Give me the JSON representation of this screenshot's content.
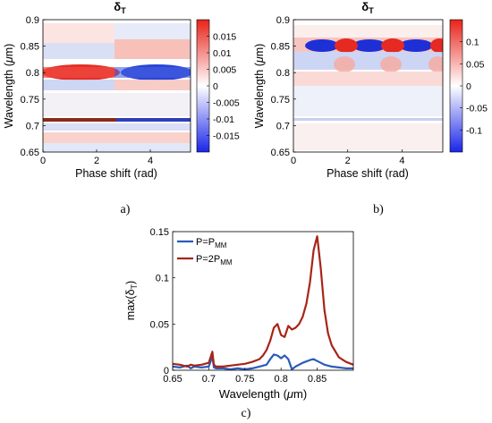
{
  "chart_data": [
    {
      "id": "a",
      "type": "heatmap",
      "title": "δ",
      "title_sub": "T",
      "xlabel": "Phase shift (rad)",
      "ylabel_pre": "Wavelength (",
      "ylabel_mu": "μ",
      "ylabel_post": "m)",
      "xlim": [
        0,
        5.5
      ],
      "ylim": [
        0.65,
        0.9
      ],
      "xticks": [
        0,
        2,
        4
      ],
      "yticks": [
        0.65,
        0.7,
        0.75,
        0.8,
        0.85,
        0.9
      ],
      "clim": [
        -0.02,
        0.02
      ],
      "colorbar_ticks": [
        "0.015",
        "0.01",
        "0.005",
        "0",
        "-0.005",
        "-0.01",
        "-0.015"
      ],
      "colorbar_tick_values": [
        0.015,
        0.01,
        0.005,
        0,
        -0.005,
        -0.01,
        -0.015
      ],
      "caption": "a)"
    },
    {
      "id": "b",
      "type": "heatmap",
      "title": "δ",
      "title_sub": "T",
      "xlabel": "Phase shift (rad)",
      "ylabel_pre": "Wavelength (",
      "ylabel_mu": "μ",
      "ylabel_post": "m)",
      "xlim": [
        0,
        5.5
      ],
      "ylim": [
        0.65,
        0.9
      ],
      "xticks": [
        0,
        2,
        4
      ],
      "yticks": [
        0.65,
        0.7,
        0.75,
        0.8,
        0.85,
        0.9
      ],
      "clim": [
        -0.15,
        0.15
      ],
      "colorbar_ticks": [
        "0.1",
        "0.05",
        "0",
        "-0.05",
        "-0.1"
      ],
      "colorbar_tick_values": [
        0.1,
        0.05,
        0,
        -0.05,
        -0.1
      ],
      "caption": "b)"
    },
    {
      "id": "c",
      "type": "line",
      "xlabel_pre": "Wavelength (",
      "xlabel_mu": "μ",
      "xlabel_post": "m)",
      "ylabel": "max(δ",
      "ylabel_sub": "T",
      "ylabel_post": ")",
      "xlim": [
        0.65,
        0.9
      ],
      "ylim": [
        0,
        0.15
      ],
      "xticks": [
        0.65,
        0.7,
        0.75,
        0.8,
        0.85
      ],
      "yticks": [
        0,
        0.05,
        0.1,
        0.15
      ],
      "caption": "c)",
      "series": [
        {
          "name_main": "P=P",
          "name_sub": "MM",
          "color": "#2a5bb8",
          "x": [
            0.65,
            0.66,
            0.67,
            0.675,
            0.68,
            0.69,
            0.7,
            0.705,
            0.707,
            0.71,
            0.72,
            0.73,
            0.74,
            0.75,
            0.76,
            0.77,
            0.78,
            0.785,
            0.79,
            0.795,
            0.8,
            0.805,
            0.81,
            0.815,
            0.82,
            0.83,
            0.84,
            0.845,
            0.85,
            0.855,
            0.86,
            0.87,
            0.88,
            0.89,
            0.9
          ],
          "y": [
            0.004,
            0.003,
            0.005,
            0.002,
            0.004,
            0.003,
            0.004,
            0.015,
            0.003,
            0.002,
            0.002,
            0.001,
            0.002,
            0.001,
            0.002,
            0.004,
            0.006,
            0.012,
            0.017,
            0.016,
            0.013,
            0.016,
            0.012,
            0.001,
            0.004,
            0.008,
            0.011,
            0.012,
            0.01,
            0.008,
            0.006,
            0.004,
            0.003,
            0.002,
            0.002
          ]
        },
        {
          "name_main": "P=2P",
          "name_sub": "MM",
          "color": "#a82418",
          "x": [
            0.65,
            0.66,
            0.67,
            0.675,
            0.68,
            0.69,
            0.7,
            0.705,
            0.707,
            0.71,
            0.72,
            0.73,
            0.74,
            0.75,
            0.76,
            0.77,
            0.775,
            0.78,
            0.785,
            0.79,
            0.795,
            0.8,
            0.805,
            0.81,
            0.815,
            0.82,
            0.825,
            0.83,
            0.835,
            0.84,
            0.845,
            0.85,
            0.855,
            0.86,
            0.865,
            0.87,
            0.88,
            0.89,
            0.9
          ],
          "y": [
            0.007,
            0.006,
            0.004,
            0.006,
            0.005,
            0.006,
            0.008,
            0.02,
            0.006,
            0.004,
            0.004,
            0.005,
            0.006,
            0.007,
            0.009,
            0.012,
            0.016,
            0.022,
            0.032,
            0.046,
            0.05,
            0.038,
            0.036,
            0.048,
            0.044,
            0.046,
            0.05,
            0.058,
            0.072,
            0.095,
            0.13,
            0.145,
            0.11,
            0.065,
            0.04,
            0.027,
            0.014,
            0.009,
            0.006
          ]
        }
      ]
    }
  ]
}
